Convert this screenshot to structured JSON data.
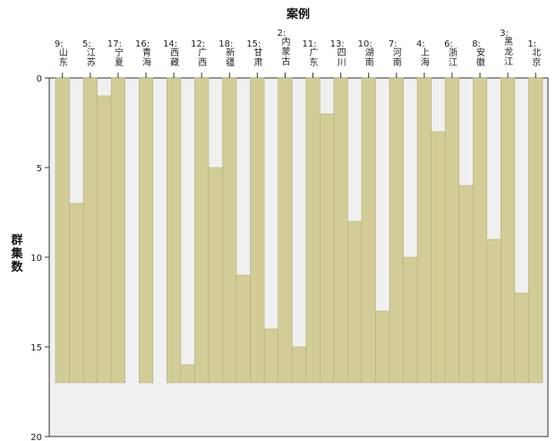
{
  "chart_data": {
    "type": "icicle",
    "title": "案例",
    "ylabel": "群集数",
    "ylim": [
      0,
      20
    ],
    "yticks": [
      0,
      5,
      10,
      15,
      20
    ],
    "max_level": 17,
    "colors": {
      "bar": "#d2cc96",
      "background": "#f0f0f0",
      "stroke": "#b5b07c"
    },
    "cases": [
      {
        "num": "9:",
        "name": "山东"
      },
      {
        "num": "5:",
        "name": "江苏"
      },
      {
        "num": "17:",
        "name": "宁夏"
      },
      {
        "num": "16:",
        "name": "青海"
      },
      {
        "num": "14:",
        "name": "西藏"
      },
      {
        "num": "12:",
        "name": "广西"
      },
      {
        "num": "18:",
        "name": "新疆"
      },
      {
        "num": "15:",
        "name": "甘肃"
      },
      {
        "num": "2:",
        "name": "内蒙古"
      },
      {
        "num": "11:",
        "name": "广东"
      },
      {
        "num": "13:",
        "name": "四川"
      },
      {
        "num": "10:",
        "name": "湖南"
      },
      {
        "num": "7:",
        "name": "河南"
      },
      {
        "num": "4:",
        "name": "上海"
      },
      {
        "num": "6:",
        "name": "浙江"
      },
      {
        "num": "8:",
        "name": "安徽"
      },
      {
        "num": "3:",
        "name": "黑龙江"
      },
      {
        "num": "1:",
        "name": "北京"
      }
    ],
    "separator_levels": [
      7,
      1,
      17,
      17,
      16,
      5,
      11,
      14,
      15,
      2,
      8,
      13,
      10,
      3,
      6,
      9,
      12,
      4
    ]
  }
}
